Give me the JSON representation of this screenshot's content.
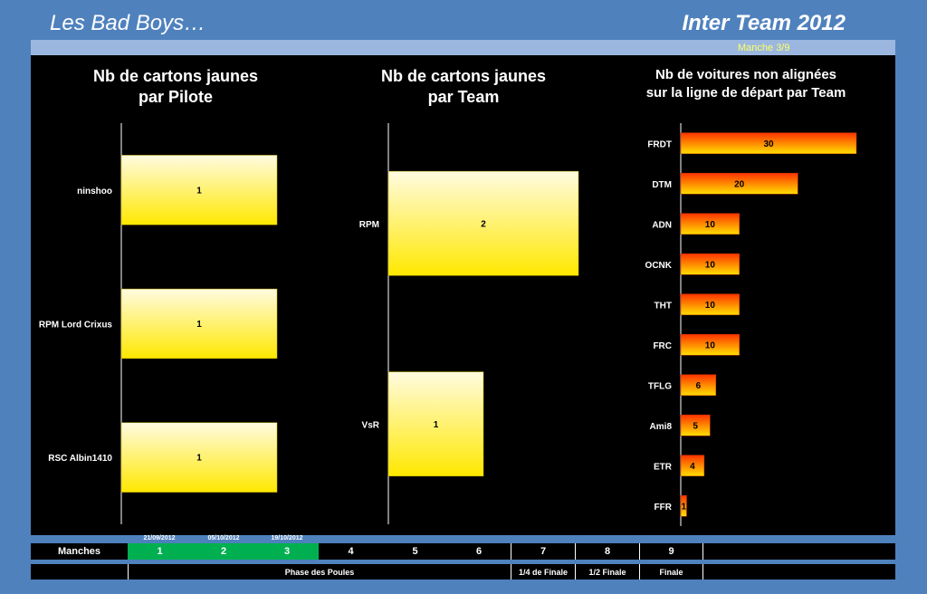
{
  "header": {
    "left": "Les Bad Boys…",
    "right": "Inter Team 2012",
    "manche": "Manche 3/9"
  },
  "chart_data": [
    {
      "type": "bar",
      "orientation": "horizontal",
      "title_line1": "Nb de cartons jaunes",
      "title_line2": "par Pilote",
      "categories": [
        "ninshoo",
        "RPM Lord Crixus",
        "RSC Albin1410"
      ],
      "values": [
        1,
        1,
        1
      ],
      "xlim": [
        0,
        1
      ],
      "color": "#ffee00"
    },
    {
      "type": "bar",
      "orientation": "horizontal",
      "title_line1": "Nb de cartons jaunes",
      "title_line2": "par Team",
      "categories": [
        "RPM",
        "VsR"
      ],
      "values": [
        2,
        1
      ],
      "xlim": [
        0,
        2
      ],
      "color": "#ffee00"
    },
    {
      "type": "bar",
      "orientation": "horizontal",
      "title_line1": "Nb de voitures non alignées",
      "title_line2": "sur la ligne de départ par Team",
      "categories": [
        "FRDT",
        "DTM",
        "ADN",
        "OCNK",
        "THT",
        "FRC",
        "TFLG",
        "Ami8",
        "ETR",
        "FFR"
      ],
      "values": [
        30,
        20,
        10,
        10,
        10,
        10,
        6,
        5,
        4,
        1
      ],
      "xlim": [
        0,
        30
      ],
      "color": "#ff5500"
    }
  ],
  "footer": {
    "manches_label": "Manches",
    "rounds": [
      "1",
      "2",
      "3",
      "4",
      "5",
      "6",
      "7",
      "8",
      "9"
    ],
    "dates": [
      "21/09/2012",
      "05/10/2012",
      "19/10/2012"
    ],
    "phases": [
      "Phase des Poules",
      "1/4 de Finale",
      "1/2 Finale",
      "Finale"
    ]
  }
}
